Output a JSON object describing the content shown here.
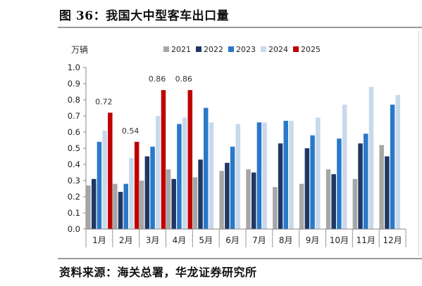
{
  "figure": {
    "title": "图 36：我国大中型客车出口量",
    "source": "资料来源：海关总署，华龙证券研究所"
  },
  "chart_data": {
    "type": "bar",
    "ylabel": "万辆",
    "ylim": [
      0,
      1.0
    ],
    "yticks": [
      "0.0",
      "0.1",
      "0.2",
      "0.3",
      "0.4",
      "0.5",
      "0.6",
      "0.7",
      "0.8",
      "0.9",
      "1.0"
    ],
    "grid": false,
    "legend_position": "top",
    "categories": [
      "1月",
      "2月",
      "3月",
      "4月",
      "5月",
      "6月",
      "7月",
      "8月",
      "9月",
      "10月",
      "11月",
      "12月"
    ],
    "series": [
      {
        "name": "2021",
        "color": "#a6a6a6",
        "values": [
          0.27,
          0.28,
          0.3,
          0.37,
          0.32,
          0.36,
          0.37,
          0.26,
          0.28,
          0.37,
          0.31,
          0.52
        ]
      },
      {
        "name": "2022",
        "color": "#1f3764",
        "values": [
          0.31,
          0.23,
          0.45,
          0.31,
          0.43,
          0.41,
          0.35,
          0.53,
          0.5,
          0.34,
          0.53,
          0.45
        ]
      },
      {
        "name": "2023",
        "color": "#2a78c8",
        "values": [
          0.54,
          0.28,
          0.51,
          0.65,
          0.75,
          0.51,
          0.66,
          0.67,
          0.58,
          0.56,
          0.59,
          0.77
        ]
      },
      {
        "name": "2024",
        "color": "#c9d9ec",
        "values": [
          0.61,
          0.44,
          0.7,
          0.69,
          0.66,
          0.65,
          0.66,
          0.67,
          0.69,
          0.77,
          0.88,
          0.83
        ]
      },
      {
        "name": "2025",
        "color": "#c00000",
        "values": [
          0.72,
          0.54,
          0.86,
          0.86,
          null,
          null,
          null,
          null,
          null,
          null,
          null,
          null
        ]
      }
    ],
    "data_labels": [
      {
        "series": "2025",
        "category": "1月",
        "text": "0.72"
      },
      {
        "series": "2025",
        "category": "2月",
        "text": "0.54"
      },
      {
        "series": "2025",
        "category": "3月",
        "text": "0.86"
      },
      {
        "series": "2025",
        "category": "4月",
        "text": "0.86"
      }
    ]
  }
}
